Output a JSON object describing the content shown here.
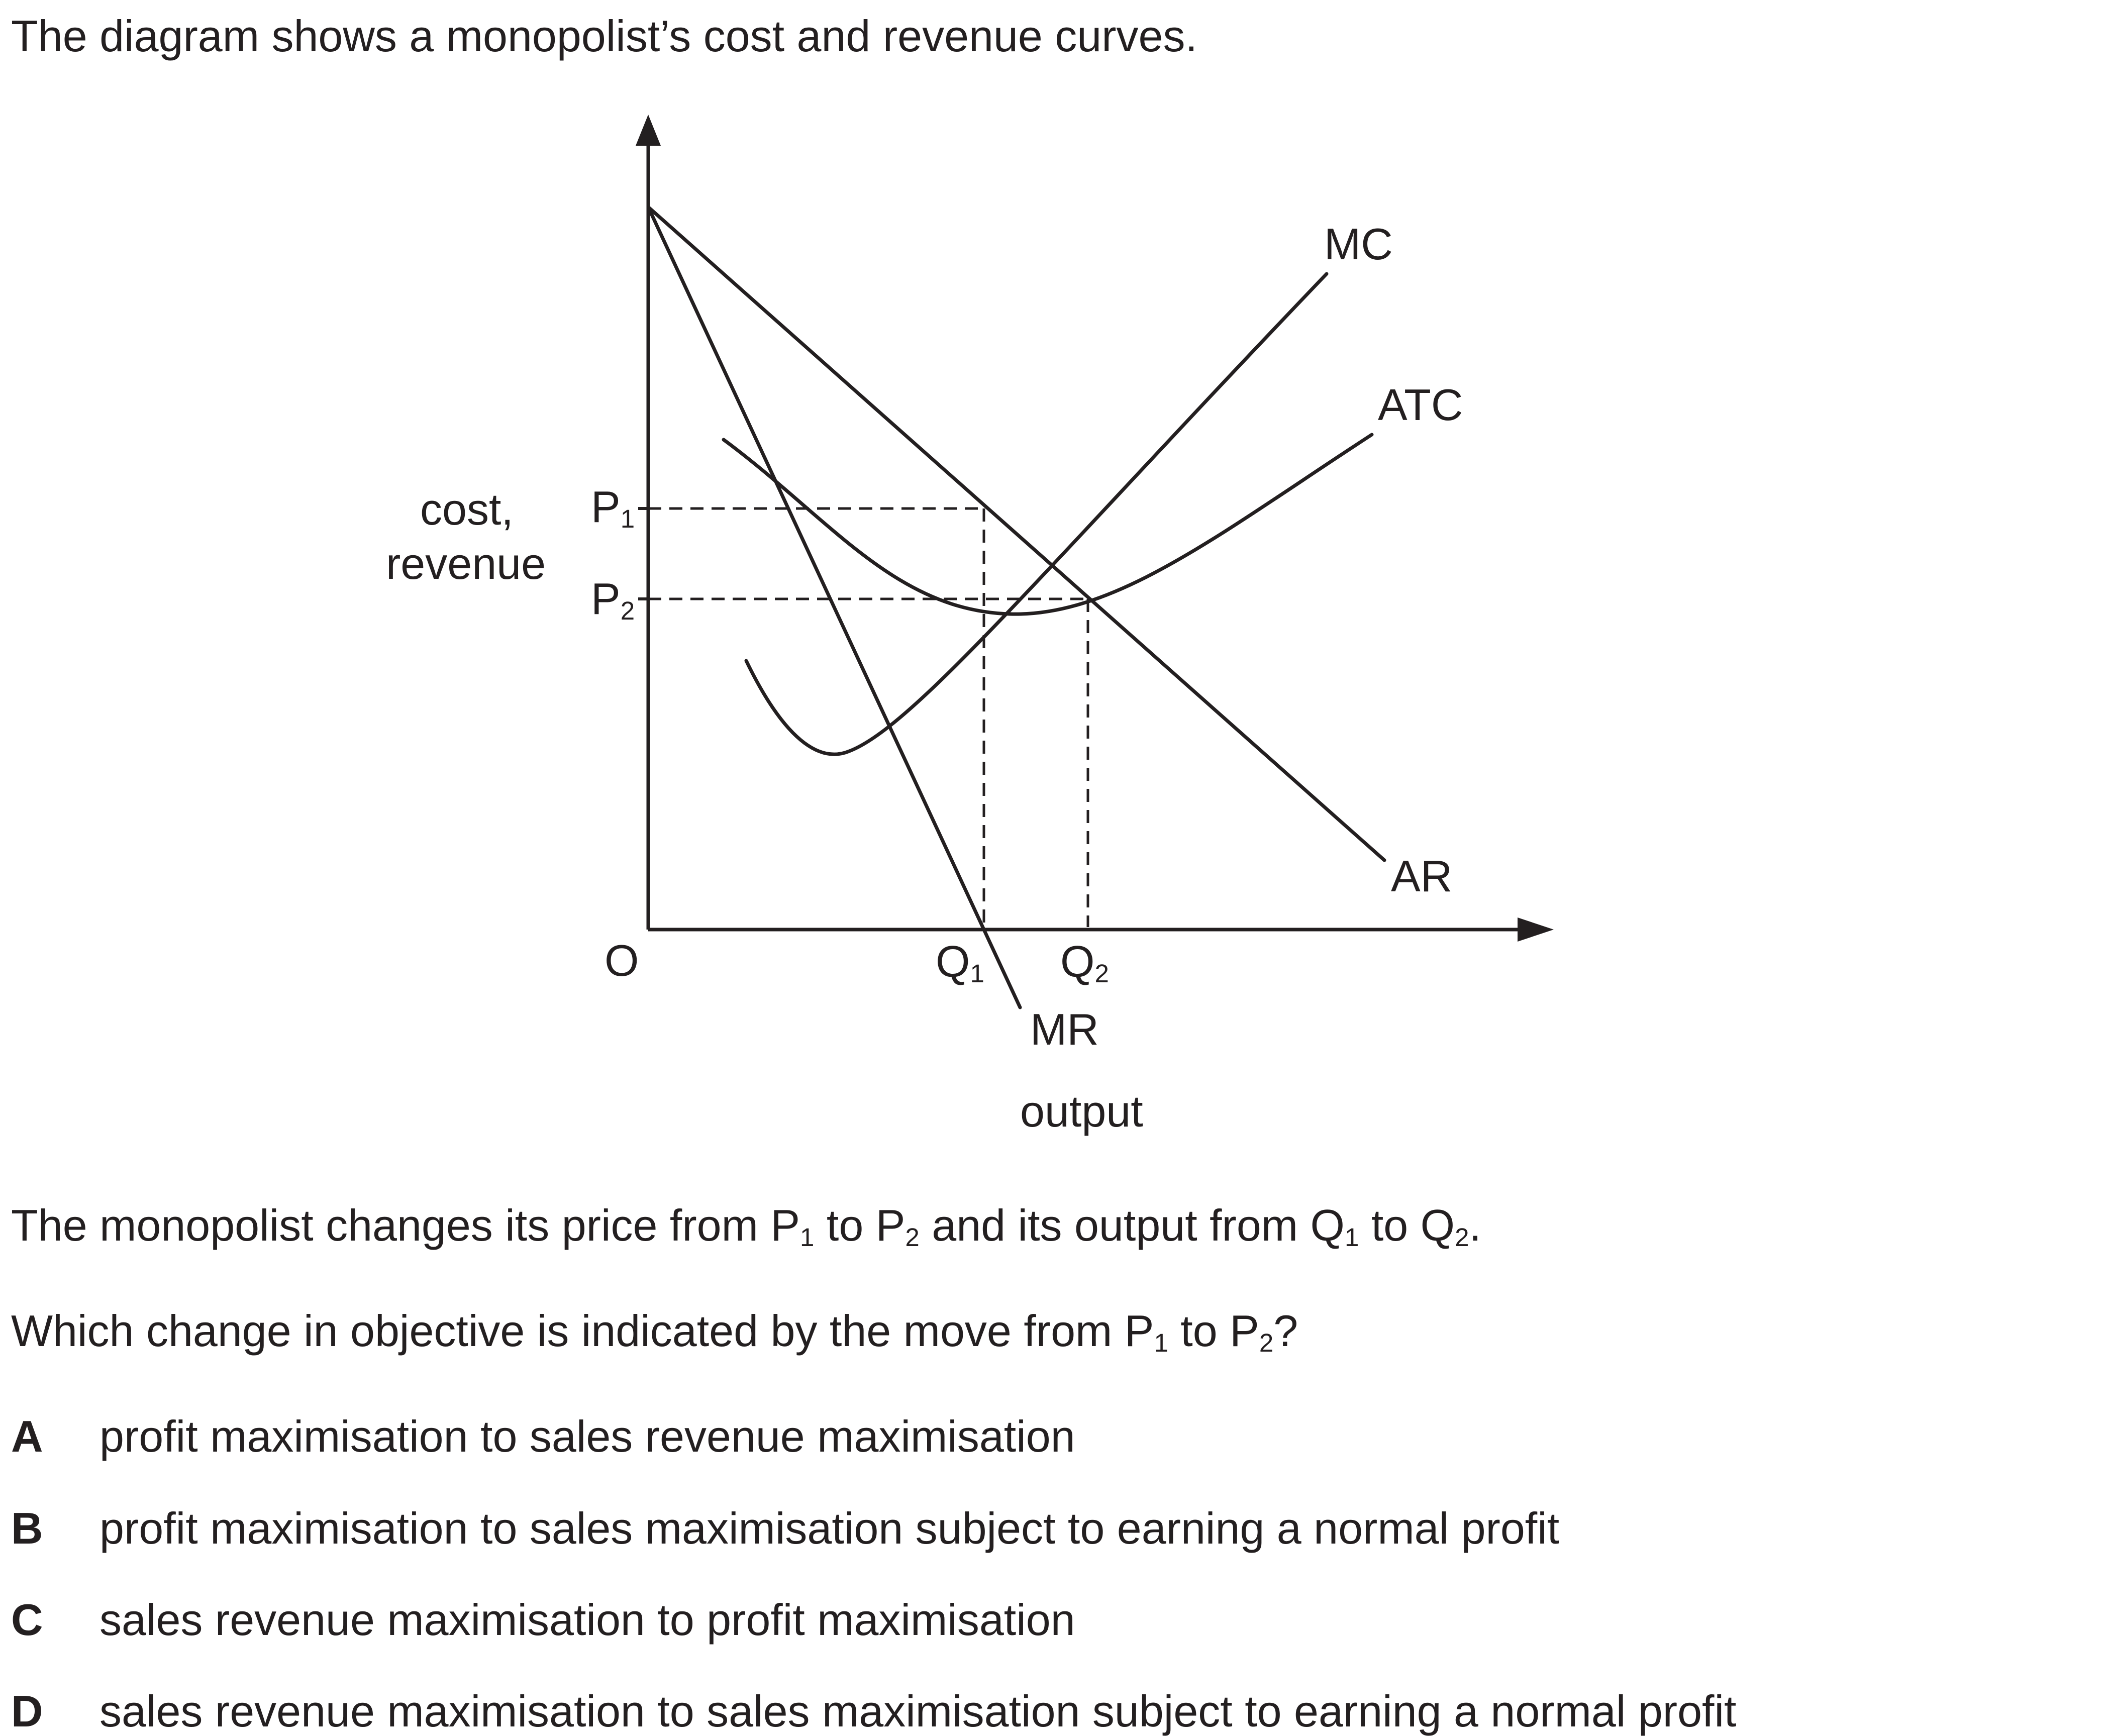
{
  "intro": "The diagram shows a monopolist’s cost and revenue curves.",
  "diagram": {
    "y_axis_label_line1": "cost,",
    "y_axis_label_line2": "revenue",
    "x_axis_label": "output",
    "origin_label": "O",
    "p1": {
      "base": "P",
      "sub": "1"
    },
    "p2": {
      "base": "P",
      "sub": "2"
    },
    "q1": {
      "base": "Q",
      "sub": "1"
    },
    "q2": {
      "base": "Q",
      "sub": "2"
    },
    "curves": {
      "mc": "MC",
      "atc": "ATC",
      "ar": "AR",
      "mr": "MR"
    }
  },
  "statement": {
    "part1": "The monopolist changes its price from P",
    "sub1": "1",
    "part2": " to P",
    "sub2": "2",
    "part3": " and its output from Q",
    "sub3": "1",
    "part4": " to Q",
    "sub4": "2",
    "part5": "."
  },
  "question": {
    "part1": "Which change in objective is indicated by the move from P",
    "sub1": "1",
    "part2": " to P",
    "sub2": "2",
    "part3": "?"
  },
  "options": [
    {
      "letter": "A",
      "text": "profit maximisation to sales revenue maximisation"
    },
    {
      "letter": "B",
      "text": "profit maximisation to sales maximisation subject to earning a normal profit"
    },
    {
      "letter": "C",
      "text": "sales revenue maximisation to profit maximisation"
    },
    {
      "letter": "D",
      "text": "sales revenue maximisation to sales maximisation subject to earning a normal profit"
    }
  ],
  "colors": {
    "ink": "#231f20"
  }
}
